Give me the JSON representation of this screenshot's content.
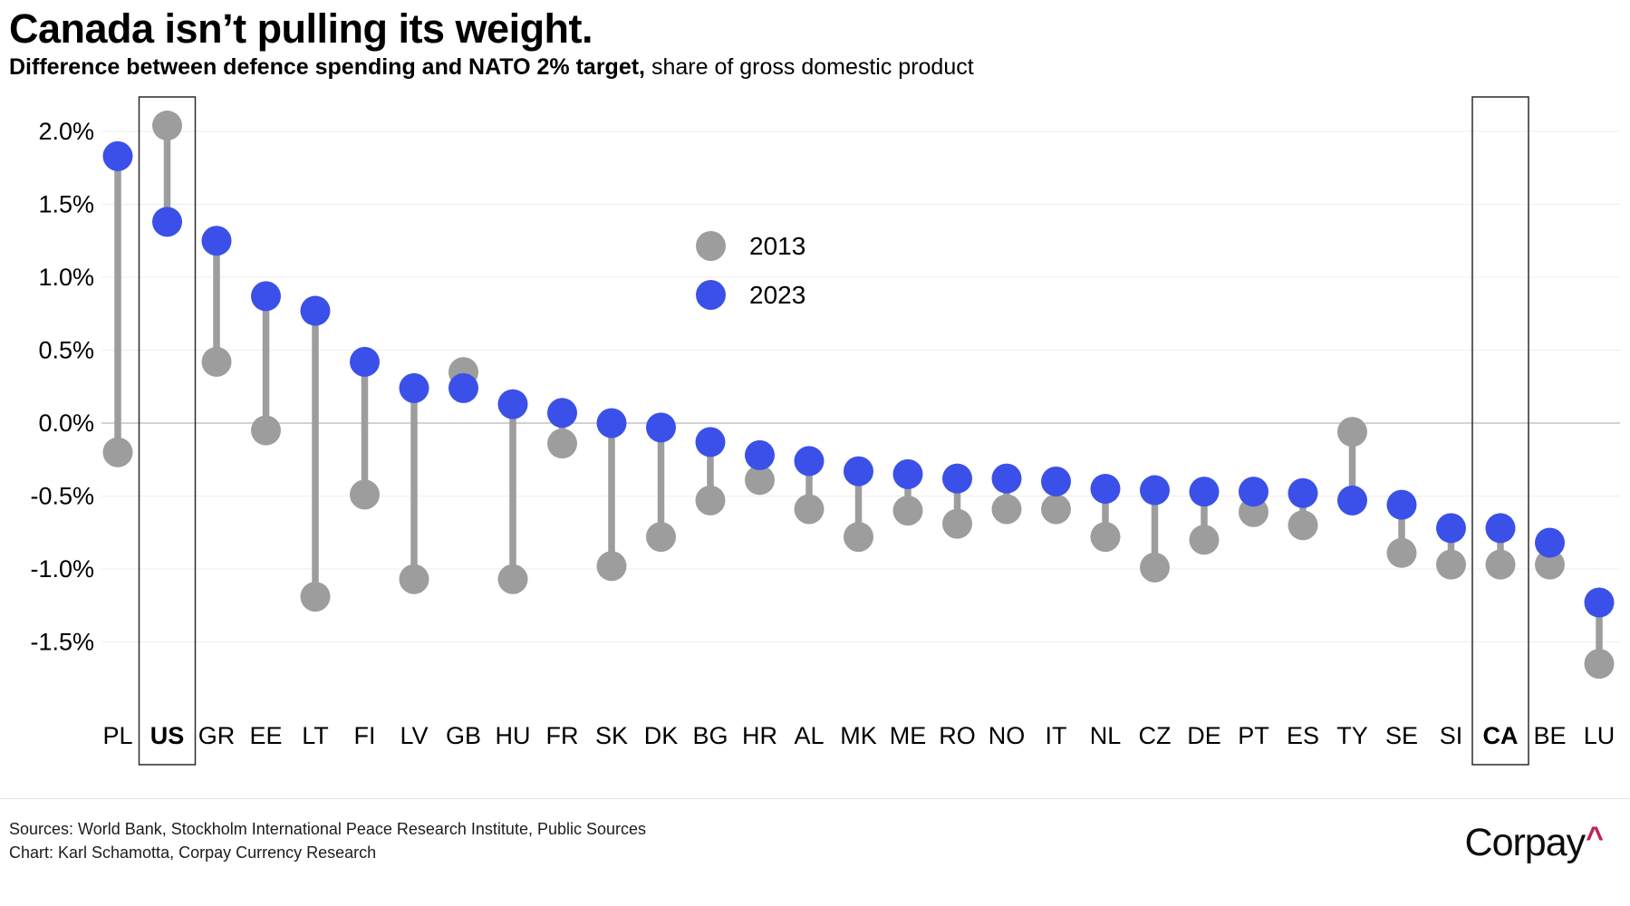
{
  "title": "Canada isn’t pulling its weight.",
  "subtitle_bold": "Difference between defence spending and NATO 2% target,",
  "subtitle_regular": " share of gross domestic product",
  "legend": {
    "items": [
      {
        "label": "2013",
        "color": "#9d9d9d"
      },
      {
        "label": "2023",
        "color": "#3b50e8"
      }
    ]
  },
  "footer": {
    "sources_line": "Sources: World Bank, Stockholm International Peace Research Institute, Public Sources",
    "chart_line": "Chart: Karl Schamotta, Corpay Currency Research"
  },
  "logo": {
    "text": "Corpay",
    "caret": "^",
    "caret_color": "#c41f54"
  },
  "chart_data": {
    "type": "scatter",
    "subtype": "dumbbell",
    "title": "Canada isn’t pulling its weight.",
    "subtitle": "Difference between defence spending and NATO 2% target, share of gross domestic product",
    "xlabel": "",
    "ylabel": "Difference vs NATO 2% target (share of GDP)",
    "ylim": [
      -1.8,
      2.3
    ],
    "grid": true,
    "legend_position": "center",
    "categories": [
      "PL",
      "US",
      "GR",
      "EE",
      "LT",
      "FI",
      "LV",
      "GB",
      "HU",
      "FR",
      "SK",
      "DK",
      "BG",
      "HR",
      "AL",
      "MK",
      "ME",
      "RO",
      "NO",
      "IT",
      "NL",
      "CZ",
      "DE",
      "PT",
      "ES",
      "TY",
      "SE",
      "SI",
      "CA",
      "BE",
      "LU"
    ],
    "highlighted_categories": [
      "US",
      "CA"
    ],
    "series": [
      {
        "name": "2013",
        "color": "#9d9d9d",
        "values": [
          -0.2,
          2.04,
          0.42,
          -0.05,
          -1.19,
          -0.49,
          -1.07,
          0.35,
          -1.07,
          -0.14,
          -0.98,
          -0.78,
          -0.53,
          -0.39,
          -0.59,
          -0.78,
          -0.6,
          -0.69,
          -0.59,
          -0.59,
          -0.78,
          -0.99,
          -0.8,
          -0.61,
          -0.7,
          -0.06,
          -0.89,
          -0.97,
          -0.97,
          -0.97,
          -1.65
        ]
      },
      {
        "name": "2023",
        "color": "#3b50e8",
        "values": [
          1.83,
          1.38,
          1.25,
          0.87,
          0.77,
          0.42,
          0.24,
          0.24,
          0.13,
          0.07,
          0.0,
          -0.03,
          -0.13,
          -0.22,
          -0.26,
          -0.33,
          -0.35,
          -0.38,
          -0.38,
          -0.4,
          -0.45,
          -0.46,
          -0.47,
          -0.47,
          -0.48,
          -0.53,
          -0.56,
          -0.72,
          -0.72,
          -0.82,
          -1.23
        ]
      }
    ],
    "yticks": [
      {
        "label": "2.0%",
        "value": 2.0
      },
      {
        "label": "1.5%",
        "value": 1.5
      },
      {
        "label": "1.0%",
        "value": 1.0
      },
      {
        "label": "0.5%",
        "value": 0.5
      },
      {
        "label": "0.0%",
        "value": 0.0
      },
      {
        "label": "-0.5%",
        "value": -0.5
      },
      {
        "label": "-1.0%",
        "value": -1.0
      },
      {
        "label": "-1.5%",
        "value": -1.5
      }
    ]
  }
}
